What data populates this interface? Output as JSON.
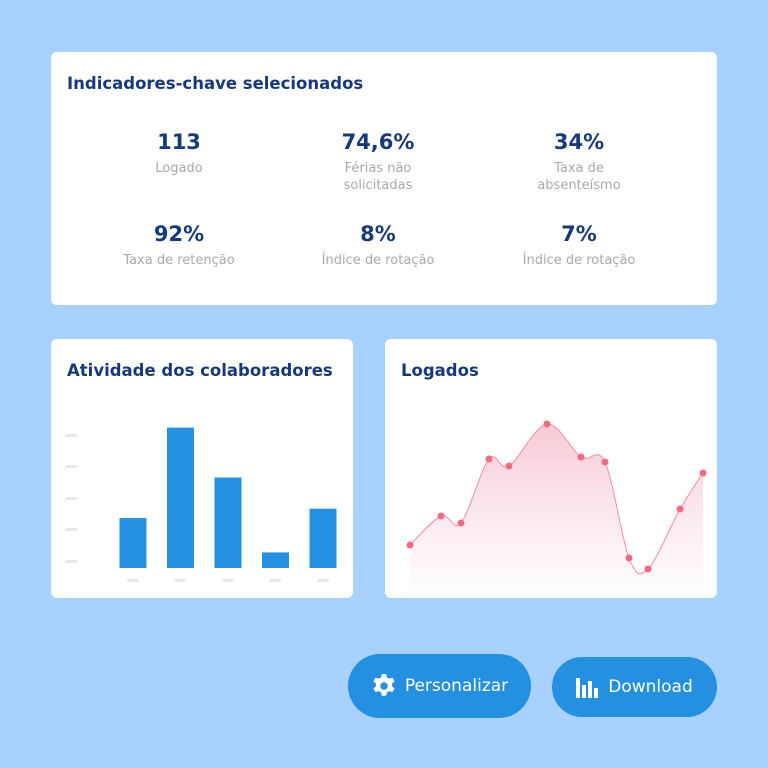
{
  "kpi_card": {
    "title": "Indicadores-chave selecionados",
    "items": [
      {
        "value": "113",
        "label": "Logado"
      },
      {
        "value": "74,6%",
        "label": "Férias não solicitadas"
      },
      {
        "value": "34%",
        "label": "Taxa de absenteísmo"
      },
      {
        "value": "92%",
        "label": "Taxa de retenção"
      },
      {
        "value": "8%",
        "label": "Índice de rotação"
      },
      {
        "value": "7%",
        "label": "Índice de rotação"
      }
    ]
  },
  "chart_data": [
    {
      "type": "bar",
      "title": "Atividade dos colaboradores",
      "values": [
        1.6,
        4.5,
        2.9,
        0.5,
        1.9
      ],
      "color": "#2590e0",
      "ylim": [
        0,
        5
      ]
    },
    {
      "type": "line",
      "title": "Logados",
      "x": [
        25,
        56,
        76,
        104,
        124,
        162,
        196,
        220,
        244,
        263,
        295,
        318
      ],
      "values": [
        53,
        82,
        75,
        139,
        132,
        174,
        141,
        136,
        40,
        29,
        89,
        125
      ],
      "color": "#ee6a85",
      "xlim": [
        0,
        332
      ],
      "ylim": [
        0,
        200
      ]
    }
  ],
  "buttons": [
    "Personalizar",
    "Download"
  ]
}
